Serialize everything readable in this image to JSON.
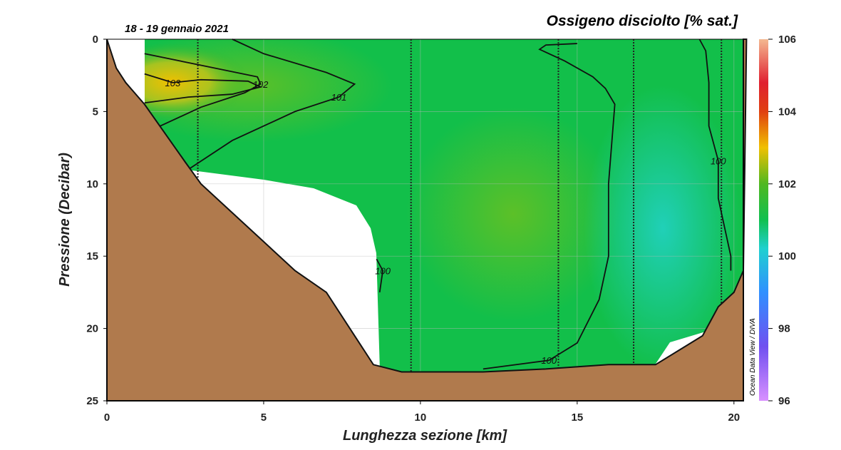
{
  "chart_data": {
    "type": "section",
    "title": "Ossigeno disciolto [% sat.]",
    "subtitle": "18 - 19 gennaio 2021",
    "x_label": "Lunghezza sezione [km]",
    "y_label": "Pressione (Decibar)",
    "credit": "Ocean Data View / DIVA",
    "xlim": [
      0,
      20.3
    ],
    "ylim": [
      0,
      25
    ],
    "xticks": [
      0,
      5,
      10,
      15,
      20
    ],
    "yticks": [
      0,
      5,
      10,
      15,
      20,
      25
    ],
    "grid": true,
    "colorbar": {
      "lim": [
        96,
        106
      ],
      "ticks": [
        96,
        98,
        100,
        102,
        104,
        106
      ]
    },
    "stations": [
      2.9,
      9.7,
      14.4,
      16.8,
      19.6
    ],
    "contours": [
      {
        "level": 103,
        "x": [
          1.2,
          2.1,
          3.0,
          4.5,
          4.9,
          4.0,
          2.6,
          1.2
        ],
        "y": [
          2.4,
          3.0,
          2.8,
          2.9,
          3.3,
          3.8,
          4.0,
          4.4
        ]
      },
      {
        "level": 102,
        "x": [
          1.2,
          3.0,
          4.8,
          4.9,
          4.4,
          3.0,
          1.7
        ],
        "y": [
          1.0,
          1.8,
          2.6,
          3.1,
          3.7,
          4.7,
          6.0
        ]
      },
      {
        "level": 101,
        "x": [
          2.6,
          4.0,
          6.0,
          7.4,
          7.9,
          7.0,
          5.0,
          4.0
        ],
        "y": [
          9.0,
          7.0,
          5.0,
          4.0,
          3.1,
          2.3,
          1.0,
          0.0
        ]
      },
      {
        "level": 100,
        "x": [
          8.6,
          8.8,
          8.7
        ],
        "y": [
          15.2,
          16.0,
          17.5
        ]
      },
      {
        "level": 100,
        "x": [
          12.0,
          14.1,
          15.0,
          15.7,
          16.0,
          16.0,
          16.2,
          15.9,
          15.5,
          14.6,
          13.8,
          14.0,
          15.0
        ],
        "y": [
          22.8,
          22.2,
          21.0,
          18.0,
          15.0,
          10.0,
          4.5,
          3.4,
          2.6,
          1.5,
          0.7,
          0.4,
          0.3
        ]
      },
      {
        "level": 100,
        "x": [
          18.9,
          19.1,
          19.2,
          19.2,
          19.5,
          19.5,
          19.7,
          19.9,
          19.9
        ],
        "y": [
          0.0,
          0.8,
          3.0,
          6.0,
          8.4,
          11.0,
          13.0,
          15.0,
          16.0
        ]
      }
    ],
    "bottom": {
      "x": [
        0,
        0.3,
        0.6,
        1.2,
        2.5,
        3.0,
        4.0,
        5.0,
        6.0,
        7.0,
        8.5,
        9.4,
        12.0,
        14.0,
        16.0,
        17.5,
        19.0,
        19.5,
        20.0,
        20.3,
        20.4
      ],
      "y": [
        0,
        2.0,
        3.0,
        4.5,
        8.5,
        10.0,
        12.0,
        14.0,
        16.0,
        17.5,
        22.5,
        23.0,
        23.0,
        22.8,
        22.5,
        22.5,
        20.5,
        18.5,
        17.5,
        16.0,
        0
      ]
    }
  }
}
